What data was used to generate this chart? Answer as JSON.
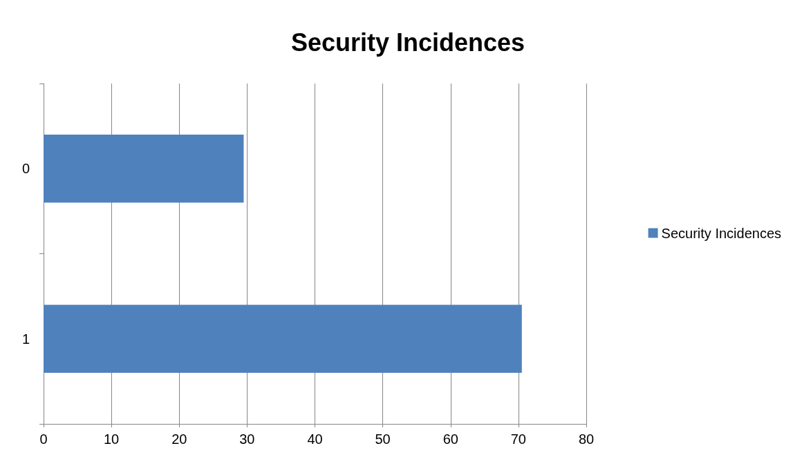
{
  "chart_data": {
    "type": "bar",
    "orientation": "horizontal",
    "title": "Security Incidences",
    "categories": [
      "0",
      "1"
    ],
    "series": [
      {
        "name": "Security Incidences",
        "color": "#4f81bd",
        "values": [
          29.5,
          70.5
        ]
      }
    ],
    "xlim": [
      0,
      80
    ],
    "xticks": [
      0,
      10,
      20,
      30,
      40,
      50,
      60,
      70,
      80
    ],
    "grid": "x",
    "legend": "right"
  }
}
